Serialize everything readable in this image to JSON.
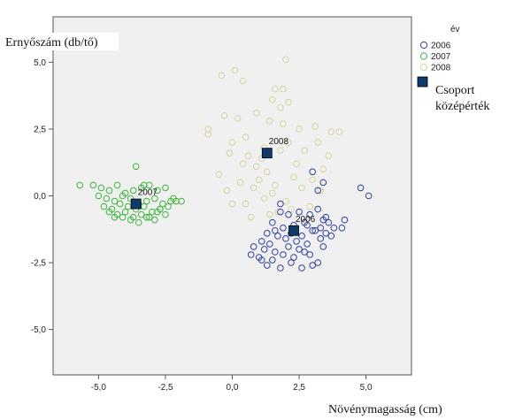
{
  "chart_data": {
    "type": "scatter",
    "xlabel": "Növénymagasság (cm)",
    "ylabel": "Ernyőszám (db/tő)",
    "xlim": [
      -6.7,
      6.7
    ],
    "ylim": [
      -6.7,
      6.7
    ],
    "xticks": [
      -5.0,
      -2.5,
      0.0,
      2.5,
      5.0
    ],
    "yticks": [
      -5.0,
      -2.5,
      0.0,
      2.5,
      5.0
    ],
    "xtick_labels": [
      "-5,0",
      "-2,5",
      "0,0",
      "2,5",
      "5,0"
    ],
    "ytick_labels": [
      "-5,0",
      "-2,5",
      "0,0",
      "2,5",
      "5,0"
    ],
    "grid": false,
    "legend": {
      "title": "év",
      "placement": "right",
      "entries": [
        "2006",
        "2007",
        "2008"
      ],
      "centroid_label": [
        "Csoport",
        "középérték"
      ]
    },
    "series": [
      {
        "name": "2006",
        "color": "#2e3f9c",
        "x": [
          1.8,
          2.1,
          2.5,
          2.9,
          3.2,
          3.4,
          1.5,
          1.9,
          2.3,
          2.7,
          3.0,
          3.3,
          3.6,
          1.3,
          1.7,
          2.2,
          2.6,
          3.1,
          3.5,
          3.8,
          1.1,
          1.4,
          2.0,
          2.4,
          2.8,
          3.3,
          3.7,
          4.1,
          0.8,
          1.2,
          1.6,
          2.1,
          2.5,
          2.9,
          3.4,
          1.0,
          1.5,
          1.9,
          2.3,
          2.7,
          3.2,
          1.3,
          1.8,
          2.2,
          2.6,
          3.0,
          0.7,
          1.1,
          1.6,
          2.8,
          3.5,
          4.2,
          4.8,
          5.1,
          3.2,
          3.4,
          3.0,
          1.8
        ],
        "y": [
          -0.6,
          -0.7,
          -0.6,
          -0.7,
          -0.5,
          -0.9,
          -1.0,
          -1.2,
          -1.1,
          -1.0,
          -1.3,
          -1.2,
          -1.0,
          -1.4,
          -1.5,
          -1.4,
          -1.5,
          -1.3,
          -1.4,
          -1.2,
          -1.7,
          -1.8,
          -1.6,
          -1.7,
          -1.8,
          -1.6,
          -1.5,
          -1.2,
          -1.9,
          -2.0,
          -2.1,
          -1.9,
          -2.0,
          -2.2,
          -1.9,
          -2.3,
          -2.4,
          -2.2,
          -2.3,
          -2.1,
          -2.5,
          -2.6,
          -2.7,
          -2.5,
          -2.7,
          -2.6,
          -2.2,
          -2.4,
          -1.3,
          -1.1,
          -0.8,
          -0.9,
          0.3,
          0.0,
          0.2,
          0.5,
          0.9,
          -0.3
        ],
        "centroid": [
          2.3,
          -1.3
        ]
      },
      {
        "name": "2007",
        "color": "#3cb43c",
        "x": [
          -5.7,
          -5.2,
          -4.9,
          -4.6,
          -4.3,
          -4.0,
          -3.7,
          -3.4,
          -3.1,
          -2.8,
          -2.5,
          -2.2,
          -1.9,
          -5.0,
          -4.7,
          -4.4,
          -4.1,
          -3.8,
          -3.5,
          -3.2,
          -2.9,
          -2.6,
          -2.3,
          -4.8,
          -4.5,
          -4.2,
          -3.9,
          -3.6,
          -3.3,
          -3.0,
          -2.7,
          -2.4,
          -4.6,
          -4.3,
          -4.0,
          -3.7,
          -3.4,
          -3.1,
          -2.8,
          -2.5,
          -4.1,
          -3.8,
          -3.5,
          -3.2,
          -2.9,
          -3.6,
          -3.3,
          -4.4,
          -2.7,
          -2.1
        ],
        "y": [
          0.4,
          0.4,
          0.3,
          0.2,
          0.4,
          0.1,
          0.2,
          0.3,
          0.4,
          0.2,
          0.3,
          -0.1,
          -0.2,
          0.0,
          -0.1,
          -0.2,
          0.0,
          -0.1,
          -0.3,
          -0.2,
          -0.1,
          -0.3,
          -0.2,
          -0.4,
          -0.5,
          -0.3,
          -0.4,
          -0.5,
          -0.4,
          -0.6,
          -0.5,
          -0.4,
          -0.6,
          -0.7,
          -0.6,
          -0.8,
          -0.7,
          -0.8,
          -0.6,
          -0.7,
          -0.8,
          -0.9,
          -1.0,
          -0.8,
          -0.9,
          1.1,
          0.4,
          -0.8,
          -0.5,
          -0.2
        ],
        "centroid": [
          -3.6,
          -0.3
        ]
      },
      {
        "name": "2008",
        "color": "#d9d2a0",
        "x": [
          2.0,
          0.1,
          -0.4,
          0.4,
          1.6,
          1.9,
          1.5,
          2.1,
          1.8,
          -0.3,
          0.2,
          0.9,
          1.4,
          1.9,
          2.5,
          3.1,
          3.7,
          4.0,
          -0.9,
          -0.9,
          0.0,
          0.5,
          1.2,
          2.1,
          3.2,
          -0.1,
          0.6,
          1.1,
          1.8,
          2.7,
          3.6,
          0.4,
          0.9,
          1.3,
          2.4,
          3.4,
          -0.5,
          0.3,
          1.0,
          1.6,
          2.3,
          3.0,
          -0.2,
          0.8,
          1.5,
          2.6,
          3.3,
          0.5,
          1.2,
          2.0,
          0.0,
          2.9,
          1.7,
          0.7,
          1.4,
          2.2
        ],
        "y": [
          5.1,
          4.7,
          4.5,
          4.3,
          4.0,
          4.0,
          3.6,
          3.5,
          3.3,
          3.0,
          2.9,
          3.1,
          2.8,
          2.7,
          2.5,
          2.6,
          2.4,
          2.4,
          2.5,
          2.3,
          2.0,
          2.2,
          1.8,
          2.0,
          2.0,
          1.6,
          1.5,
          1.4,
          1.7,
          1.7,
          1.5,
          1.2,
          1.1,
          0.9,
          1.2,
          1.0,
          0.8,
          0.5,
          0.6,
          0.4,
          0.7,
          0.6,
          0.2,
          0.3,
          0.1,
          0.3,
          0.2,
          -0.3,
          -0.1,
          -0.2,
          -0.3,
          -0.4,
          -0.6,
          -0.8,
          -0.7,
          -0.5
        ],
        "centroid": [
          1.3,
          1.6
        ]
      }
    ],
    "centroid_marker_color": "#0e3a6c"
  }
}
